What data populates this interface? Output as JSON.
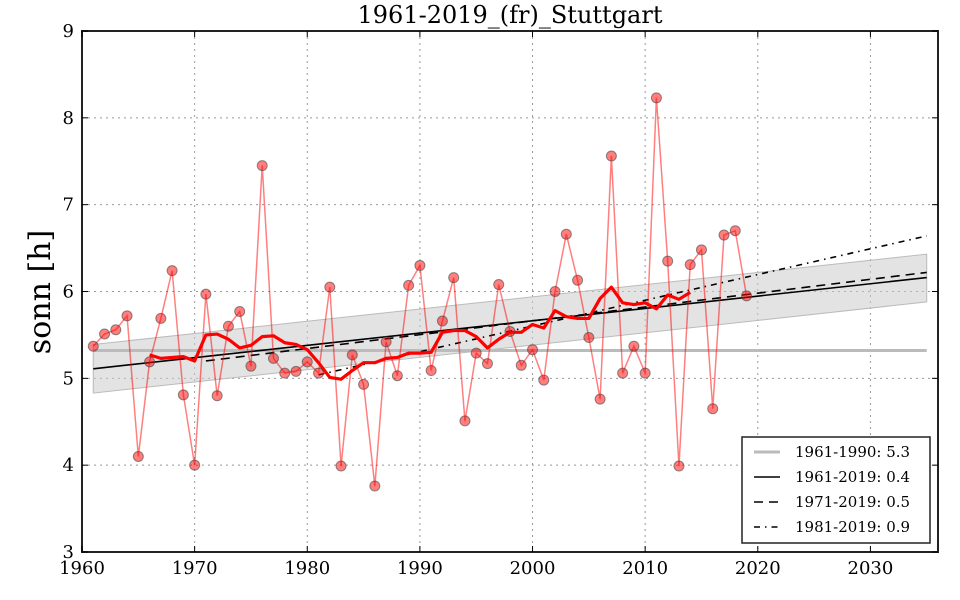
{
  "chart_data": {
    "type": "line",
    "title": "1961-2019_(fr)_Stuttgart",
    "xlabel": "",
    "ylabel": "sonn [h]",
    "xlim": [
      1960,
      2036
    ],
    "ylim": [
      3,
      9
    ],
    "xticks": [
      1960,
      1970,
      1980,
      1990,
      2000,
      2010,
      2020,
      2030
    ],
    "yticks": [
      3,
      4,
      5,
      6,
      7,
      8,
      9
    ],
    "grid": true,
    "legend_position": "bottom-right",
    "colors": {
      "observed": "#ff0000",
      "smoothed": "#ff0000",
      "baseline": "#bbbbbb",
      "trend": "#000000",
      "confidence_band": "#cccccc"
    },
    "series": [
      {
        "name": "observed",
        "x": [
          1961,
          1962,
          1963,
          1964,
          1965,
          1966,
          1967,
          1968,
          1969,
          1970,
          1971,
          1972,
          1973,
          1974,
          1975,
          1976,
          1977,
          1978,
          1979,
          1980,
          1981,
          1982,
          1983,
          1984,
          1985,
          1986,
          1987,
          1988,
          1989,
          1990,
          1991,
          1992,
          1993,
          1994,
          1995,
          1996,
          1997,
          1998,
          1999,
          2000,
          2001,
          2002,
          2003,
          2004,
          2005,
          2006,
          2007,
          2008,
          2009,
          2010,
          2011,
          2012,
          2013,
          2014,
          2015,
          2016,
          2017,
          2018,
          2019
        ],
        "values": [
          5.37,
          5.51,
          5.56,
          5.72,
          4.1,
          5.19,
          5.69,
          6.24,
          4.81,
          4.0,
          5.97,
          4.8,
          5.6,
          5.77,
          5.14,
          7.45,
          5.23,
          5.06,
          5.08,
          5.19,
          5.06,
          6.05,
          3.99,
          5.27,
          4.93,
          3.76,
          5.42,
          5.03,
          6.07,
          6.3,
          5.09,
          5.66,
          6.16,
          4.51,
          5.29,
          5.17,
          6.08,
          5.54,
          5.15,
          5.33,
          4.98,
          6.0,
          6.66,
          6.13,
          5.47,
          4.76,
          7.56,
          5.06,
          5.37,
          5.06,
          8.23,
          6.35,
          3.99,
          6.31,
          6.48,
          4.65,
          6.65,
          6.7,
          5.95
        ]
      },
      {
        "name": "smoothed",
        "x": [
          1966,
          1967,
          1968,
          1969,
          1970,
          1971,
          1972,
          1973,
          1974,
          1975,
          1976,
          1977,
          1978,
          1979,
          1980,
          1981,
          1982,
          1983,
          1984,
          1985,
          1986,
          1987,
          1988,
          1989,
          1990,
          1991,
          1992,
          1993,
          1994,
          1995,
          1996,
          1997,
          1998,
          1999,
          2000,
          2001,
          2002,
          2003,
          2004,
          2005,
          2006,
          2007,
          2008,
          2009,
          2010,
          2011,
          2012,
          2013,
          2014
        ],
        "values": [
          5.27,
          5.23,
          5.24,
          5.25,
          5.2,
          5.5,
          5.51,
          5.45,
          5.35,
          5.38,
          5.48,
          5.49,
          5.41,
          5.39,
          5.33,
          5.18,
          5.01,
          4.99,
          5.09,
          5.18,
          5.18,
          5.23,
          5.24,
          5.29,
          5.29,
          5.3,
          5.53,
          5.55,
          5.55,
          5.48,
          5.35,
          5.45,
          5.53,
          5.53,
          5.62,
          5.58,
          5.78,
          5.71,
          5.69,
          5.69,
          5.92,
          6.05,
          5.87,
          5.85,
          5.87,
          5.8,
          5.96,
          5.91,
          5.99
        ]
      },
      {
        "name": "1961-1990: 5.3",
        "style": "baseline",
        "x": [
          1961,
          2035
        ],
        "values": [
          5.32,
          5.32
        ]
      },
      {
        "name": "1961-2019: 0.4",
        "style": "solid",
        "x": [
          1961,
          2035
        ],
        "values": [
          5.11,
          6.16
        ]
      },
      {
        "name": "1971-2019: 0.5",
        "style": "dashed",
        "x": [
          1971,
          2035
        ],
        "values": [
          5.2,
          6.22
        ]
      },
      {
        "name": "1981-2019: 0.9",
        "style": "dashdot",
        "x": [
          1981,
          2035
        ],
        "values": [
          5.04,
          6.64
        ]
      },
      {
        "name": "confidence-band",
        "style": "band",
        "x": [
          1961,
          2035
        ],
        "upper": [
          5.39,
          6.43
        ],
        "lower": [
          4.83,
          5.88
        ]
      }
    ],
    "legend": [
      {
        "label": "1961-1990: 5.3",
        "style": "baseline"
      },
      {
        "label": "1961-2019: 0.4",
        "style": "solid"
      },
      {
        "label": "1971-2019: 0.5",
        "style": "dashed"
      },
      {
        "label": "1981-2019: 0.9",
        "style": "dashdot"
      }
    ]
  }
}
